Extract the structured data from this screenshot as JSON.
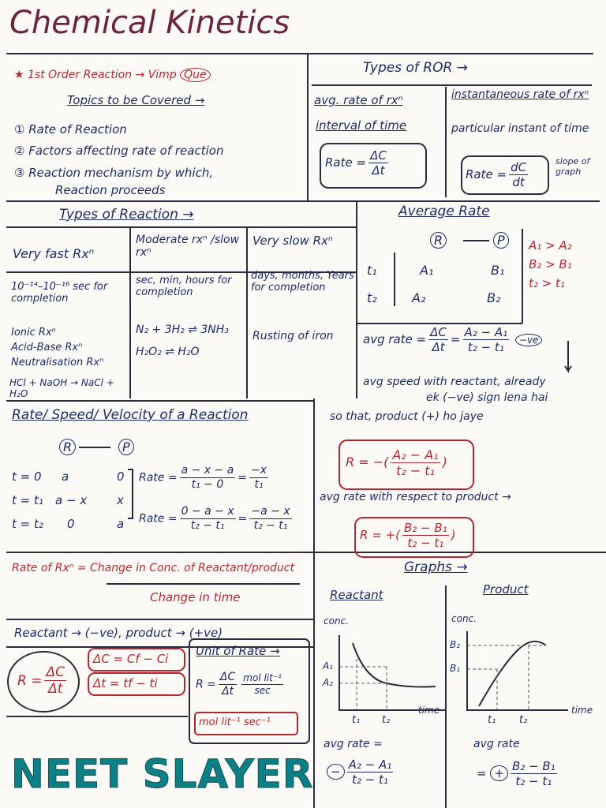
{
  "header": {
    "title": "Chemical Kinetics"
  },
  "intro": {
    "heading": "★ 1st Order Reaction → Vimp",
    "badge": "Que",
    "topics_title": "Topics to be Covered →",
    "topics": [
      "① Rate of Reaction",
      "② Factors affecting rate of reaction",
      "③ Reaction mechanism by which,",
      "Reaction proceeds"
    ]
  },
  "types_of_ror": {
    "title": "Types of ROR →",
    "average": {
      "heading": "avg. rate of rxⁿ",
      "text": "interval of time",
      "lhs": "Rate =",
      "numerator": "ΔC",
      "denominator": "Δt"
    },
    "instantaneous": {
      "heading": "instantaneous rate of rxⁿ",
      "text": "particular instant of time",
      "lhs": "Rate =",
      "numerator": "dC",
      "denominator": "dt",
      "note": "slope of graph"
    }
  },
  "types_of_reaction": {
    "title": "Types of Reaction →",
    "columns": [
      {
        "heading": "Very fast Rxⁿ",
        "time": "10⁻¹⁴–10⁻¹⁶ sec for completion",
        "examples": [
          "Ionic Rxⁿ",
          "Acid-Base Rxⁿ",
          "Neutralisation Rxⁿ",
          "HCl + NaOH → NaCl + H₂O"
        ]
      },
      {
        "heading": "Moderate rxⁿ /slow rxⁿ",
        "time": "sec, min, hours for completion",
        "examples": [
          "N₂ + 3H₂ ⇌ 3NH₃",
          "H₂O₂ ⇌ H₂O"
        ]
      },
      {
        "heading": "Very slow Rxⁿ",
        "time": "days, months, Years for completion",
        "examples": [
          "Rusting of iron"
        ]
      }
    ]
  },
  "average_rate": {
    "title": "Average Rate",
    "reactant": "R",
    "product": "P",
    "rows": [
      [
        "t₁",
        "A₁",
        "B₁"
      ],
      [
        "t₂",
        "A₂",
        "B₂"
      ]
    ],
    "relations": [
      "A₁ > A₂",
      "B₂ > B₁",
      "t₂ > t₁"
    ],
    "formula": {
      "lhs": "avg rate =",
      "n1": "ΔC",
      "d1": "Δt",
      "eq": "=",
      "n2": "A₂ − A₁",
      "d2": "t₂ − t₁",
      "sign": "−ve"
    },
    "note": [
      "avg speed with reactant, already",
      "ek (−ve) sign lena hai",
      "so that, product (+) ho jaye"
    ],
    "reactant_formula": {
      "lhs": "R = −(",
      "numerator": "A₂ − A₁",
      "denominator": "t₂ − t₁",
      "rhs": ")"
    },
    "product_note": "avg rate with respect to product →",
    "product_formula": {
      "lhs": "R = +(",
      "numerator": "B₂ − B₁",
      "denominator": "t₂ − t₁",
      "rhs": ")"
    }
  },
  "rate_speed_velocity": {
    "title": "Rate/ Speed/ Velocity of a Reaction",
    "reactant": "R",
    "product": "P",
    "rows": [
      [
        "t = 0",
        "a",
        "0"
      ],
      [
        "t = t₁",
        "a − x",
        "x"
      ],
      [
        "t = t₂",
        "0",
        "a"
      ]
    ],
    "equations": [
      {
        "lhs": "Rate =",
        "n1": "a − x − a",
        "d1": "t₁ − 0",
        "eq": "=",
        "n2": "−x",
        "d2": "t₁"
      },
      {
        "lhs": "Rate =",
        "n1": "0 − a − x",
        "d1": "t₂ − t₁",
        "eq": "=",
        "n2": "−a − x",
        "d2": "t₂ − t₁"
      }
    ]
  },
  "definition": {
    "numerator": "Rate of Rxⁿ = Change in Conc. of Reactant/product",
    "denominator": "Change in time"
  },
  "sign_convention": "Reactant → (−ve), product → (+ve)",
  "formulas": {
    "rate": {
      "lhs": "R =",
      "numerator": "ΔC",
      "denominator": "Δt"
    },
    "delta_c": "ΔC = Cf − Ci",
    "delta_t": "Δt = tf − ti"
  },
  "unit_of_rate": {
    "title": "Unit of Rate →",
    "lhs": "R =",
    "numerator": "ΔC",
    "denominator": "Δt",
    "unit_numerator": "mol lit⁻¹",
    "unit_denominator": "sec",
    "result": "mol lit⁻¹ sec⁻¹"
  },
  "graphs": {
    "title": "Graphs →",
    "reactant": {
      "title": "Reactant",
      "y_label": "conc.",
      "x_label": "time",
      "y_ticks": [
        "A₁",
        "A₂"
      ],
      "x_ticks": [
        "t₁",
        "t₂"
      ],
      "avg_rate": "avg rate =",
      "sign": "−",
      "numerator": "A₂ − A₁",
      "denominator": "t₂ − t₁"
    },
    "product": {
      "title": "Product",
      "y_label": "conc.",
      "x_label": "time",
      "y_ticks": [
        "B₂",
        "B₁"
      ],
      "x_ticks": [
        "t₁",
        "t₂"
      ],
      "avg_rate": "avg rate",
      "eq": "=",
      "sign": "+",
      "numerator": "B₂ − B₁",
      "denominator": "t₂ − t₁"
    }
  },
  "watermark": "NEET SLAYER"
}
